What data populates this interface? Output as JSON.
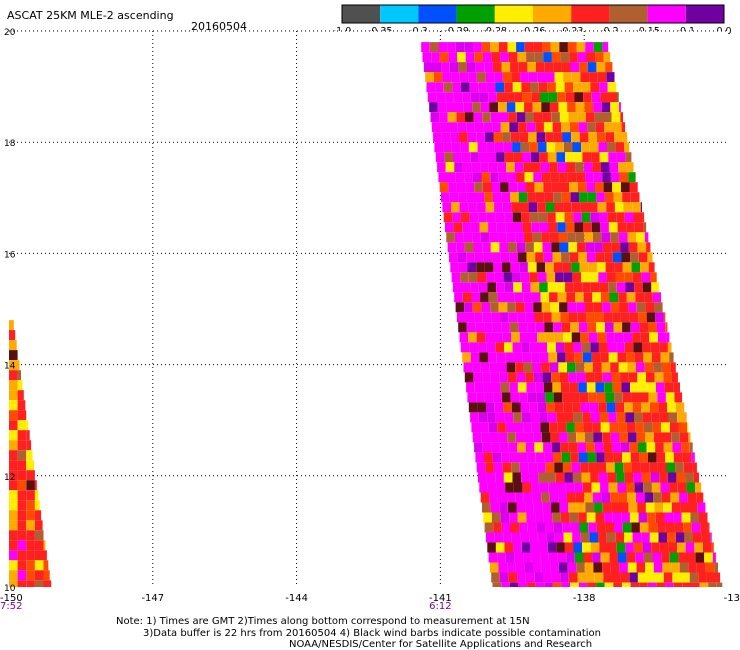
{
  "title": "ASCAT 25KM MLE-2 ascending",
  "date": "20160504",
  "colorbar": {
    "colors": [
      "#505050",
      "#00c8ff",
      "#0050ff",
      "#00a000",
      "#ffee00",
      "#ffaa00",
      "#ff2020",
      "#b06030",
      "#ff00ff",
      "#7000a0"
    ],
    "labels": [
      "-1.0",
      "-0.35",
      "-0.3",
      "-0.29",
      "-0.28",
      "-0.26",
      "-0.23",
      "-0.2",
      "-0.15",
      "-0.1",
      "0.0"
    ]
  },
  "axes": {
    "lat_labels": [
      "20",
      "18",
      "16",
      "14",
      "12",
      "10"
    ],
    "lon_labels": [
      "-150",
      "-147",
      "-144",
      "-141",
      "-138",
      "-13"
    ],
    "time_labels": [
      "7:52",
      "6:12"
    ]
  },
  "notes": {
    "line1": "Note: 1) Times are GMT 2)Times along bottom correspond to measurement at 15N",
    "line2": "3)Data buffer is 22 hrs from 20160504 4) Black wind barbs indicate possible contamination",
    "line3": "NOAA/NESDIS/Center for Satellite Applications and Research"
  },
  "map_data": {
    "lat_range": [
      10,
      20
    ],
    "lon_range": [
      -150,
      -135
    ],
    "swaths": [
      {
        "name": "west",
        "lat_top": 14.8,
        "lon_left_at_top": -150,
        "lon_right_at_top": -149.9,
        "lon_left_at_bottom": -150,
        "lon_right_at_bottom": -149.1
      },
      {
        "name": "east",
        "lat_top": 19.8,
        "lon_left_at_top": -141.4,
        "lon_right_at_top": -137.5,
        "lon_left_at_bottom": -139.9,
        "lon_right_at_bottom": -135.1
      }
    ],
    "cell_deg": 0.18
  }
}
